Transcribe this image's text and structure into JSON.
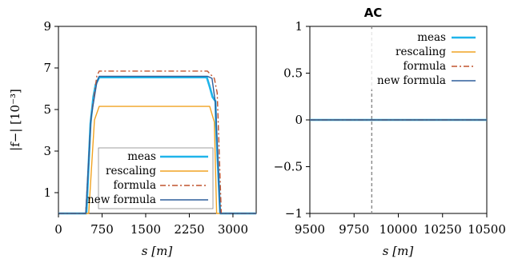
{
  "chart_data": [
    {
      "type": "line",
      "title": "",
      "xlabel": "s [m]",
      "ylabel": "|f−| [10⁻³]",
      "xlim": [
        0,
        3400
      ],
      "ylim": [
        0,
        9
      ],
      "xticks": [
        "0",
        "750",
        "1500",
        "2250",
        "3000"
      ],
      "xtick_values": [
        0,
        750,
        1500,
        2250,
        3000
      ],
      "yticks": [
        "1",
        "3",
        "5",
        "7",
        "9"
      ],
      "ytick_values": [
        1,
        3,
        5,
        7,
        9
      ],
      "grid": false,
      "legend_position": "bottom-right",
      "series": [
        {
          "name": "meas",
          "color": "#1fb4ea",
          "dash": "solid",
          "width": 2.6,
          "x": [
            0,
            480,
            550,
            600,
            640,
            700,
            2550,
            2600,
            2650,
            2700,
            2710,
            2780,
            3400
          ],
          "y": [
            0,
            0,
            4.3,
            5.6,
            6.2,
            6.55,
            6.55,
            6.1,
            5.6,
            5.4,
            4.2,
            0,
            0
          ]
        },
        {
          "name": "rescaling",
          "color": "#f0a323",
          "dash": "solid",
          "width": 1.4,
          "x": [
            0,
            520,
            620,
            700,
            2600,
            2680,
            2720,
            3400
          ],
          "y": [
            0,
            0,
            4.5,
            5.15,
            5.15,
            4.4,
            0,
            0
          ]
        },
        {
          "name": "formula",
          "color": "#c0532f",
          "dash": "7,3,2,3",
          "width": 1.4,
          "x": [
            0,
            470,
            560,
            660,
            700,
            2560,
            2680,
            2730,
            2800,
            3400
          ],
          "y": [
            0,
            0,
            4.6,
            6.6,
            6.85,
            6.85,
            6.5,
            5.8,
            0,
            0
          ]
        },
        {
          "name": "new formula",
          "color": "#2e5f9c",
          "dash": "solid",
          "width": 1.4,
          "x": [
            0,
            470,
            560,
            660,
            700,
            2560,
            2640,
            2700,
            2780,
            3400
          ],
          "y": [
            0,
            0,
            4.6,
            6.3,
            6.6,
            6.6,
            6.5,
            5.3,
            0,
            0
          ]
        }
      ]
    },
    {
      "type": "line",
      "title": "AC",
      "xlabel": "s [m]",
      "ylabel": "",
      "xlim": [
        9500,
        10500
      ],
      "ylim": [
        -1,
        1
      ],
      "xticks": [
        "9500",
        "9750",
        "10000",
        "10250",
        "10500"
      ],
      "xtick_values": [
        9500,
        9750,
        10000,
        10250,
        10500
      ],
      "yticks": [
        "−1",
        "−0.5",
        "0",
        "0.5",
        "1"
      ],
      "ytick_values": [
        -1,
        -0.5,
        0,
        0.5,
        1
      ],
      "grid": false,
      "legend_position": "top-right",
      "vline_x": 9850,
      "series": [
        {
          "name": "meas",
          "color": "#1fb4ea",
          "dash": "solid",
          "width": 2.6,
          "x": [
            9500,
            10500
          ],
          "y": [
            0,
            0
          ]
        },
        {
          "name": "rescaling",
          "color": "#f0a323",
          "dash": "solid",
          "width": 1.4,
          "x": [
            9500,
            10500
          ],
          "y": [
            0,
            0
          ]
        },
        {
          "name": "formula",
          "color": "#c0532f",
          "dash": "7,3,2,3",
          "width": 1.4,
          "x": [
            9500,
            10500
          ],
          "y": [
            0,
            0
          ]
        },
        {
          "name": "new formula",
          "color": "#2e5f9c",
          "dash": "solid",
          "width": 1.4,
          "x": [
            9500,
            10500
          ],
          "y": [
            0,
            0
          ]
        }
      ]
    }
  ]
}
